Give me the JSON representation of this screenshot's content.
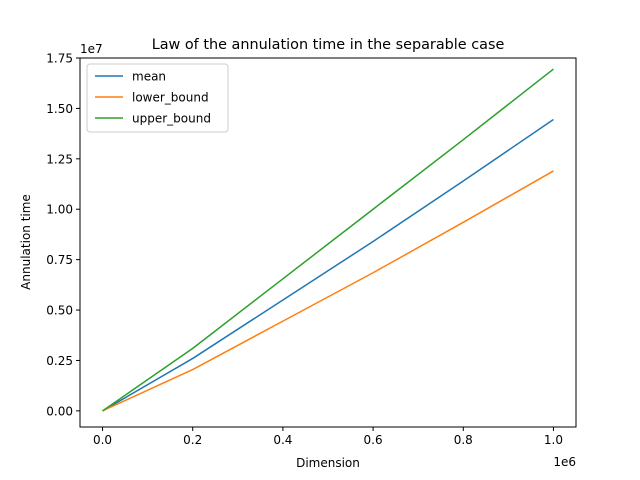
{
  "chart_data": {
    "type": "line",
    "title": "Law of the annulation time in the separable case",
    "xlabel": "Dimension",
    "ylabel": "Annulation time",
    "x_offset_label": "1e6",
    "y_offset_label": "1e7",
    "xlim": [
      -50000,
      1050000
    ],
    "ylim": [
      -800000,
      17500000
    ],
    "x_ticks": [
      0,
      200000,
      400000,
      600000,
      800000,
      1000000
    ],
    "x_tick_labels": [
      "0.0",
      "0.2",
      "0.4",
      "0.6",
      "0.8",
      "1.0"
    ],
    "y_ticks": [
      0,
      2500000,
      5000000,
      7500000,
      10000000,
      12500000,
      15000000,
      17500000
    ],
    "y_tick_labels": [
      "0.00",
      "0.25",
      "0.50",
      "0.75",
      "1.00",
      "1.25",
      "1.50",
      "1.75"
    ],
    "grid": false,
    "legend_position": "upper left",
    "x": [
      0,
      200000,
      400000,
      600000,
      800000,
      1000000
    ],
    "series": [
      {
        "name": "mean",
        "color": "#1f77b4",
        "values": [
          0,
          2600000,
          5500000,
          8400000,
          11400000,
          14450000
        ]
      },
      {
        "name": "lower_bound",
        "color": "#ff7f0e",
        "values": [
          0,
          2050000,
          4450000,
          6850000,
          9350000,
          11900000
        ]
      },
      {
        "name": "upper_bound",
        "color": "#2ca02c",
        "values": [
          0,
          3100000,
          6550000,
          10000000,
          13450000,
          16950000
        ]
      }
    ]
  }
}
